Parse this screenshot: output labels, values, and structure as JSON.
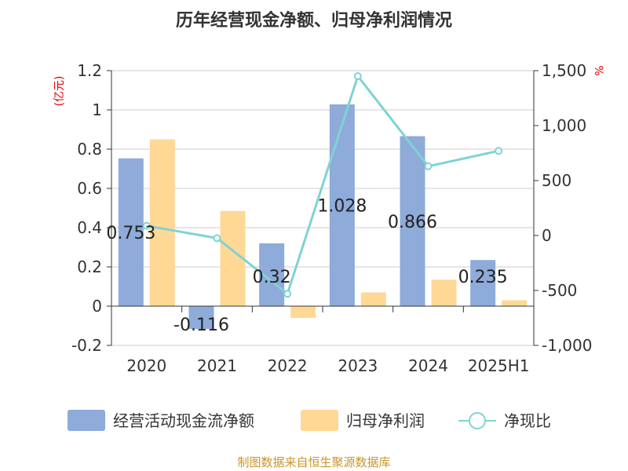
{
  "chart_data": {
    "type": "bar",
    "title": "历年经营现金净额、归母净利润情况",
    "left_unit": "(亿元)",
    "right_unit": "%",
    "categories": [
      "2020",
      "2021",
      "2022",
      "2023",
      "2024",
      "2025H1"
    ],
    "series": [
      {
        "name": "经营活动现金流净额",
        "type": "bar",
        "axis": "left",
        "values": [
          0.753,
          -0.116,
          0.32,
          1.028,
          0.866,
          0.235
        ],
        "labels": [
          "0.753",
          "-0.116",
          "0.32",
          "1.028",
          "0.866",
          "0.235"
        ]
      },
      {
        "name": "归母净利润",
        "type": "bar",
        "axis": "left",
        "values": [
          0.85,
          0.485,
          -0.06,
          0.07,
          0.135,
          0.03
        ]
      },
      {
        "name": "净现比",
        "type": "line",
        "axis": "right",
        "values": [
          88,
          -24,
          -530,
          1450,
          630,
          770
        ]
      }
    ],
    "left_axis": {
      "min": -0.2,
      "max": 1.2,
      "ticks": [
        "-0.2",
        "0",
        "0.2",
        "0.4",
        "0.6",
        "0.8",
        "1",
        "1.2"
      ]
    },
    "right_axis": {
      "min": -1000,
      "max": 1500,
      "ticks": [
        "-1,000",
        "-500",
        "0",
        "500",
        "1,000",
        "1,500"
      ]
    },
    "grid": true,
    "legend_position": "bottom",
    "colors": {
      "cash_flow": "#8eabd9",
      "net_profit": "#ffd896",
      "ratio": "#7fd3d3",
      "unit": "#e00000",
      "source": "#c8962a"
    },
    "source_note": "制图数据来自恒生聚源数据库"
  }
}
